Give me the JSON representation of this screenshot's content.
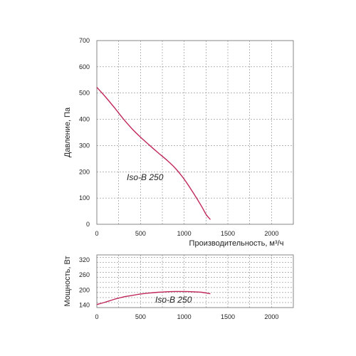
{
  "chart_data": [
    {
      "type": "line",
      "xlabel": "Производительность, м³/ч",
      "ylabel": "Давление, Па",
      "xlim": [
        0,
        2250
      ],
      "ylim": [
        0,
        700
      ],
      "xticks": [
        "0",
        "500",
        "1000",
        "1500",
        "2000"
      ],
      "yticks": [
        "0",
        "100",
        "200",
        "300",
        "400",
        "500",
        "600",
        "700"
      ],
      "grid": true,
      "series": [
        {
          "name": "Iso-B 250",
          "color": "#c0285a",
          "x": [
            0,
            100,
            200,
            300,
            400,
            500,
            600,
            700,
            800,
            900,
            1000,
            1100,
            1200,
            1250,
            1300
          ],
          "y": [
            522,
            485,
            445,
            403,
            365,
            332,
            302,
            273,
            245,
            213,
            172,
            122,
            68,
            38,
            18
          ]
        }
      ]
    },
    {
      "type": "line",
      "xlabel": "",
      "ylabel": "Мощность, Вт",
      "xlim": [
        0,
        2250
      ],
      "ylim": [
        130,
        340
      ],
      "xticks": [
        "0",
        "500",
        "1000",
        "1500",
        "2000"
      ],
      "yticks": [
        "140",
        "200",
        "260",
        "320"
      ],
      "grid": true,
      "series": [
        {
          "name": "Iso-B 250",
          "color": "#c0285a",
          "x": [
            0,
            100,
            200,
            300,
            400,
            500,
            600,
            700,
            800,
            900,
            1000,
            1100,
            1200,
            1300
          ],
          "y": [
            142,
            152,
            163,
            172,
            178,
            184,
            188,
            191,
            193,
            194,
            194,
            193,
            191,
            185
          ]
        }
      ]
    }
  ]
}
